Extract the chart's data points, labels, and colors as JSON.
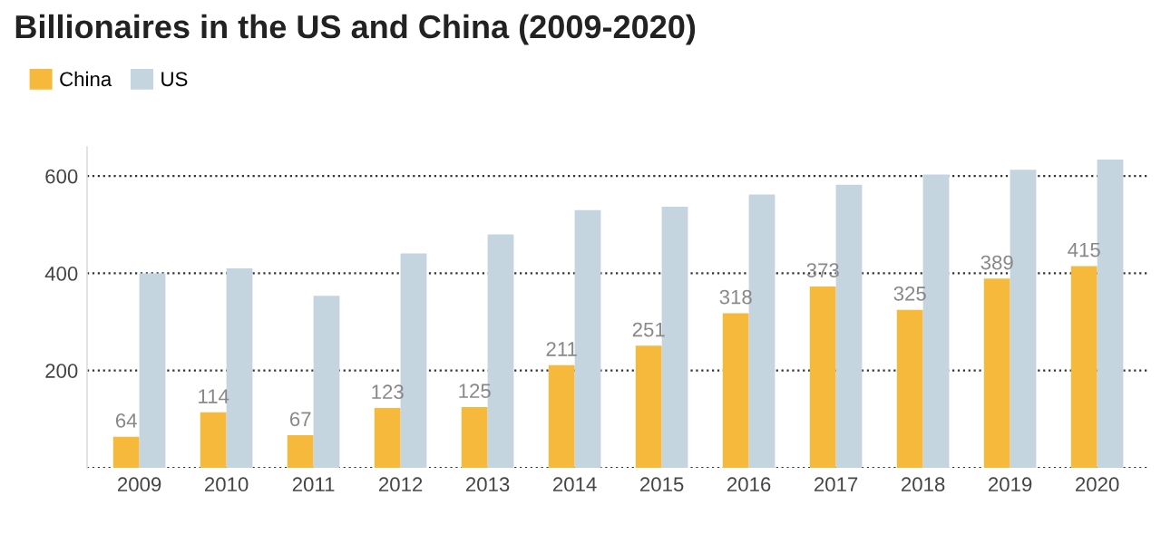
{
  "chart_data": {
    "type": "bar",
    "title": "Billionaires in the US and China (2009-2020)",
    "categories": [
      "2009",
      "2010",
      "2011",
      "2012",
      "2013",
      "2014",
      "2015",
      "2016",
      "2017",
      "2018",
      "2019",
      "2020"
    ],
    "series": [
      {
        "name": "China",
        "color": "#f6b93b",
        "values": [
          64,
          114,
          67,
          123,
          125,
          211,
          251,
          318,
          373,
          325,
          389,
          415
        ],
        "value_labels": [
          "64",
          "114",
          "67",
          "123",
          "125",
          "211",
          "251",
          "318",
          "373",
          "325",
          "389",
          "415"
        ]
      },
      {
        "name": "US",
        "color": "#c5d5e0",
        "values": [
          400,
          410,
          354,
          441,
          480,
          530,
          537,
          562,
          582,
          603,
          613,
          634
        ]
      }
    ],
    "ylim": [
      0,
      660
    ],
    "yticks": [
      {
        "value": 0,
        "label": null
      },
      200,
      400,
      600
    ],
    "grid": "y",
    "line_style": "dotted",
    "legend": "top left"
  }
}
